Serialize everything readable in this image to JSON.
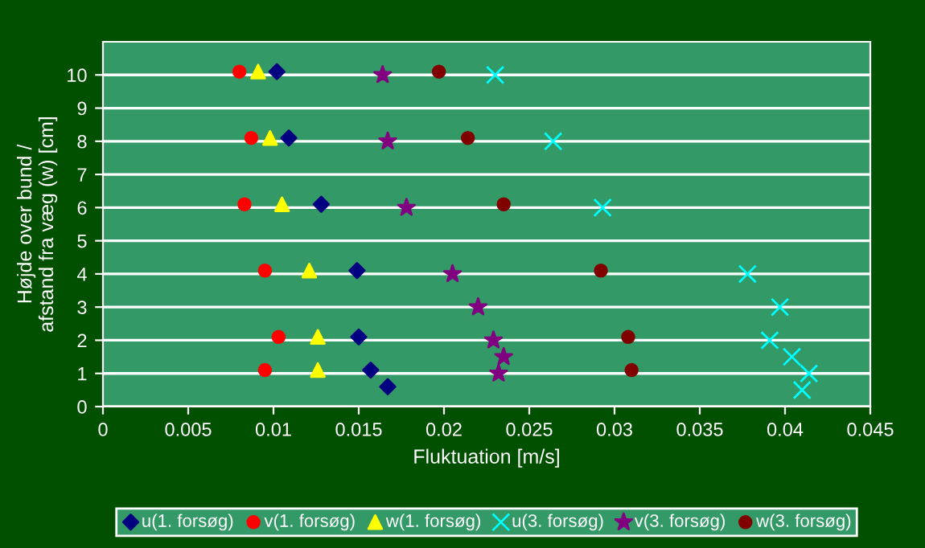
{
  "chart_data": {
    "type": "scatter",
    "xlabel": "Fluktuation [m/s]",
    "ylabel": "Højde over bund /\nafstand fra væg (w) [cm]",
    "xlim": [
      0,
      0.045
    ],
    "xticks": [
      0,
      0.005,
      0.01,
      0.015,
      0.02,
      0.025,
      0.03,
      0.035,
      0.04,
      0.045
    ],
    "ylim": [
      0,
      11
    ],
    "yticks": [
      0,
      1,
      2,
      3,
      4,
      5,
      6,
      7,
      8,
      9,
      10
    ],
    "grid": "y",
    "legend": "bottom",
    "series": [
      {
        "name": "u(1. forsøg)",
        "color": "#000080",
        "marker": "diamond",
        "x": [
          0.0102,
          0.0109,
          0.0128,
          0.0149,
          0.015,
          0.0157,
          0.0167
        ],
        "values": [
          10.1,
          8.1,
          6.1,
          4.1,
          2.1,
          1.1,
          0.6
        ]
      },
      {
        "name": "v(1. forsøg)",
        "color": "#ff0000",
        "marker": "circle",
        "x": [
          0.008,
          0.0087,
          0.0083,
          0.0095,
          0.0103,
          0.0095
        ],
        "values": [
          10.1,
          8.1,
          6.1,
          4.1,
          2.1,
          1.1
        ]
      },
      {
        "name": "w(1. forsøg)",
        "color": "#ffff00",
        "marker": "triangle",
        "x": [
          0.0091,
          0.0098,
          0.0105,
          0.0121,
          0.0126,
          0.0126
        ],
        "values": [
          10.1,
          8.1,
          6.1,
          4.1,
          2.1,
          1.1
        ]
      },
      {
        "name": "u(3. forsøg)",
        "color": "#00ffff",
        "marker": "cross",
        "x": [
          0.023,
          0.0264,
          0.0293,
          0.0378,
          0.0397,
          0.0391,
          0.0404,
          0.0414,
          0.041
        ],
        "values": [
          10,
          8,
          6,
          4,
          3,
          2,
          1.5,
          1,
          0.5
        ]
      },
      {
        "name": "v(3. forsøg)",
        "color": "#800080",
        "marker": "star",
        "x": [
          0.0164,
          0.0167,
          0.0178,
          0.0205,
          0.022,
          0.0229,
          0.0235,
          0.0232
        ],
        "values": [
          10,
          8,
          6,
          4,
          3,
          2,
          1.5,
          1
        ]
      },
      {
        "name": "w(3. forsøg)",
        "color": "#800000",
        "marker": "circle",
        "x": [
          0.0197,
          0.0214,
          0.0235,
          0.0292,
          0.0308,
          0.031
        ],
        "values": [
          10.1,
          8.1,
          6.1,
          4.1,
          2.1,
          1.1
        ]
      }
    ]
  }
}
